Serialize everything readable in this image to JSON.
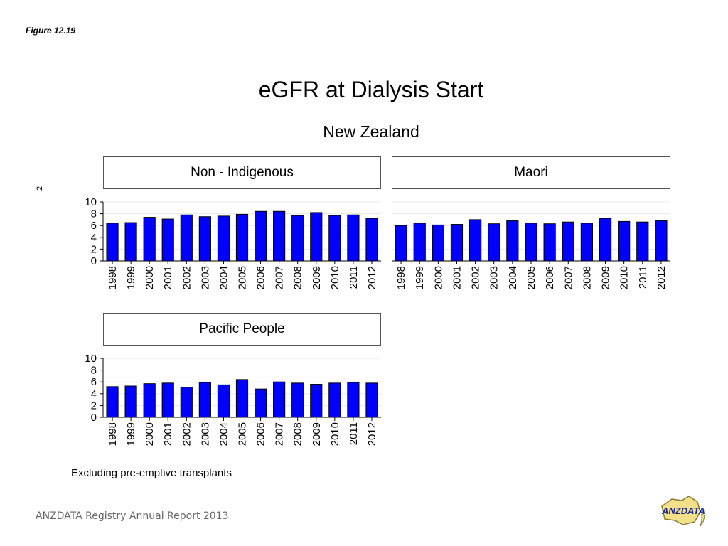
{
  "figure_label": "Figure 12.19",
  "title": "eGFR at Dialysis Start",
  "subtitle": "New Zealand",
  "y_unit": "2",
  "footnote": "Excluding pre-emptive transplants",
  "source": "ANZDATA Registry Annual Report 2013",
  "logo": {
    "text": "ANZDATA",
    "name": "anzdata-logo",
    "colors": {
      "fill": "#f2e08a",
      "stroke": "#8c7a2e",
      "text": "#1a2a8c"
    }
  },
  "colors": {
    "bar_fill": "#0000ff",
    "bar_stroke": "#000000",
    "axis": "#000000",
    "grid": "#e8e8e8"
  },
  "chart_data": [
    {
      "type": "bar",
      "title": "Non - Indigenous",
      "categories": [
        "1998",
        "1999",
        "2000",
        "2001",
        "2002",
        "2003",
        "2004",
        "2005",
        "2006",
        "2007",
        "2008",
        "2009",
        "2010",
        "2011",
        "2012"
      ],
      "values": [
        6.4,
        6.5,
        7.4,
        7.1,
        7.8,
        7.5,
        7.6,
        7.9,
        8.4,
        8.4,
        7.7,
        8.2,
        7.7,
        7.8,
        7.2
      ],
      "ylim": [
        0,
        10
      ],
      "yticks": [
        0,
        2,
        4,
        6,
        8,
        10
      ],
      "grid": true
    },
    {
      "type": "bar",
      "title": "Maori",
      "categories": [
        "1998",
        "1999",
        "2000",
        "2001",
        "2002",
        "2003",
        "2004",
        "2005",
        "2006",
        "2007",
        "2008",
        "2009",
        "2010",
        "2011",
        "2012"
      ],
      "values": [
        6.0,
        6.4,
        6.1,
        6.2,
        7.0,
        6.3,
        6.8,
        6.4,
        6.3,
        6.6,
        6.4,
        7.2,
        6.7,
        6.6,
        6.8
      ],
      "ylim": [
        0,
        10
      ],
      "yticks": [],
      "grid": true
    },
    {
      "type": "bar",
      "title": "Pacific People",
      "categories": [
        "1998",
        "1999",
        "2000",
        "2001",
        "2002",
        "2003",
        "2004",
        "2005",
        "2006",
        "2007",
        "2008",
        "2009",
        "2010",
        "2011",
        "2012"
      ],
      "values": [
        5.2,
        5.3,
        5.7,
        5.8,
        5.1,
        5.9,
        5.5,
        6.4,
        4.8,
        6.0,
        5.8,
        5.6,
        5.8,
        5.9,
        5.8
      ],
      "ylim": [
        0,
        10
      ],
      "yticks": [
        0,
        2,
        4,
        6,
        8,
        10
      ],
      "grid": true
    }
  ]
}
